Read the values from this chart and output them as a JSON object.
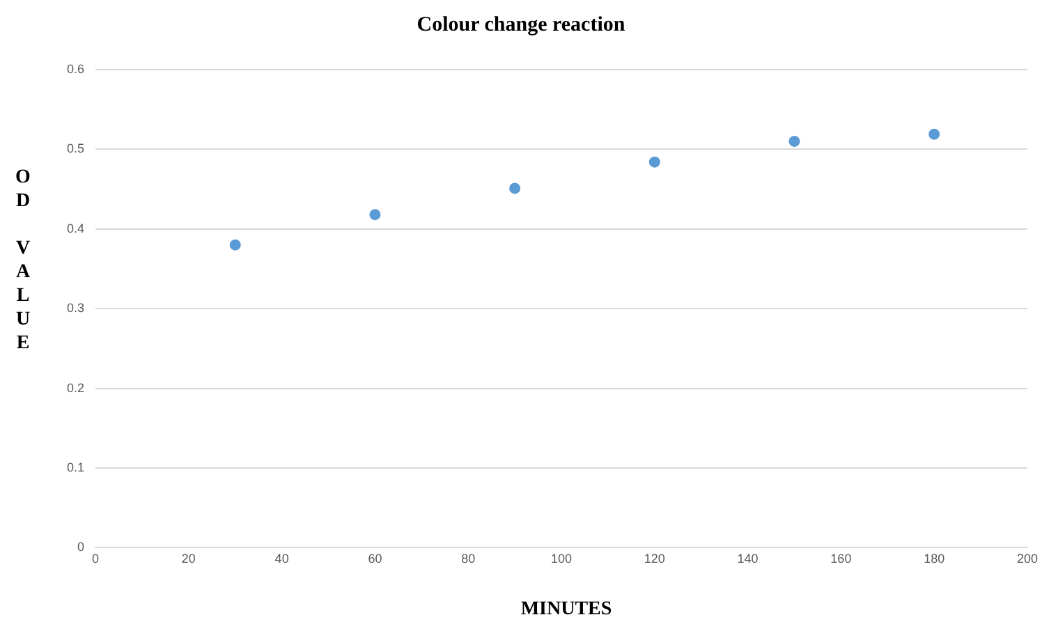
{
  "chart_data": {
    "type": "scatter",
    "title": "Colour change reaction",
    "xlabel": "MINUTES",
    "ylabel": "OD VALUE",
    "x": [
      30,
      60,
      90,
      120,
      150,
      180
    ],
    "series": [
      {
        "color": "#5b9bd5",
        "values": [
          0.38,
          0.418,
          0.451,
          0.484,
          0.51,
          0.519
        ]
      }
    ],
    "xlim": [
      0,
      200
    ],
    "xticks": [
      0,
      20,
      40,
      60,
      80,
      100,
      120,
      140,
      160,
      180,
      200
    ],
    "ylim": [
      0,
      0.6
    ],
    "yticks": [
      0,
      0.1,
      0.2,
      0.3,
      0.4,
      0.5,
      0.6
    ],
    "grid": "y",
    "legend": false,
    "marker": "circle"
  }
}
